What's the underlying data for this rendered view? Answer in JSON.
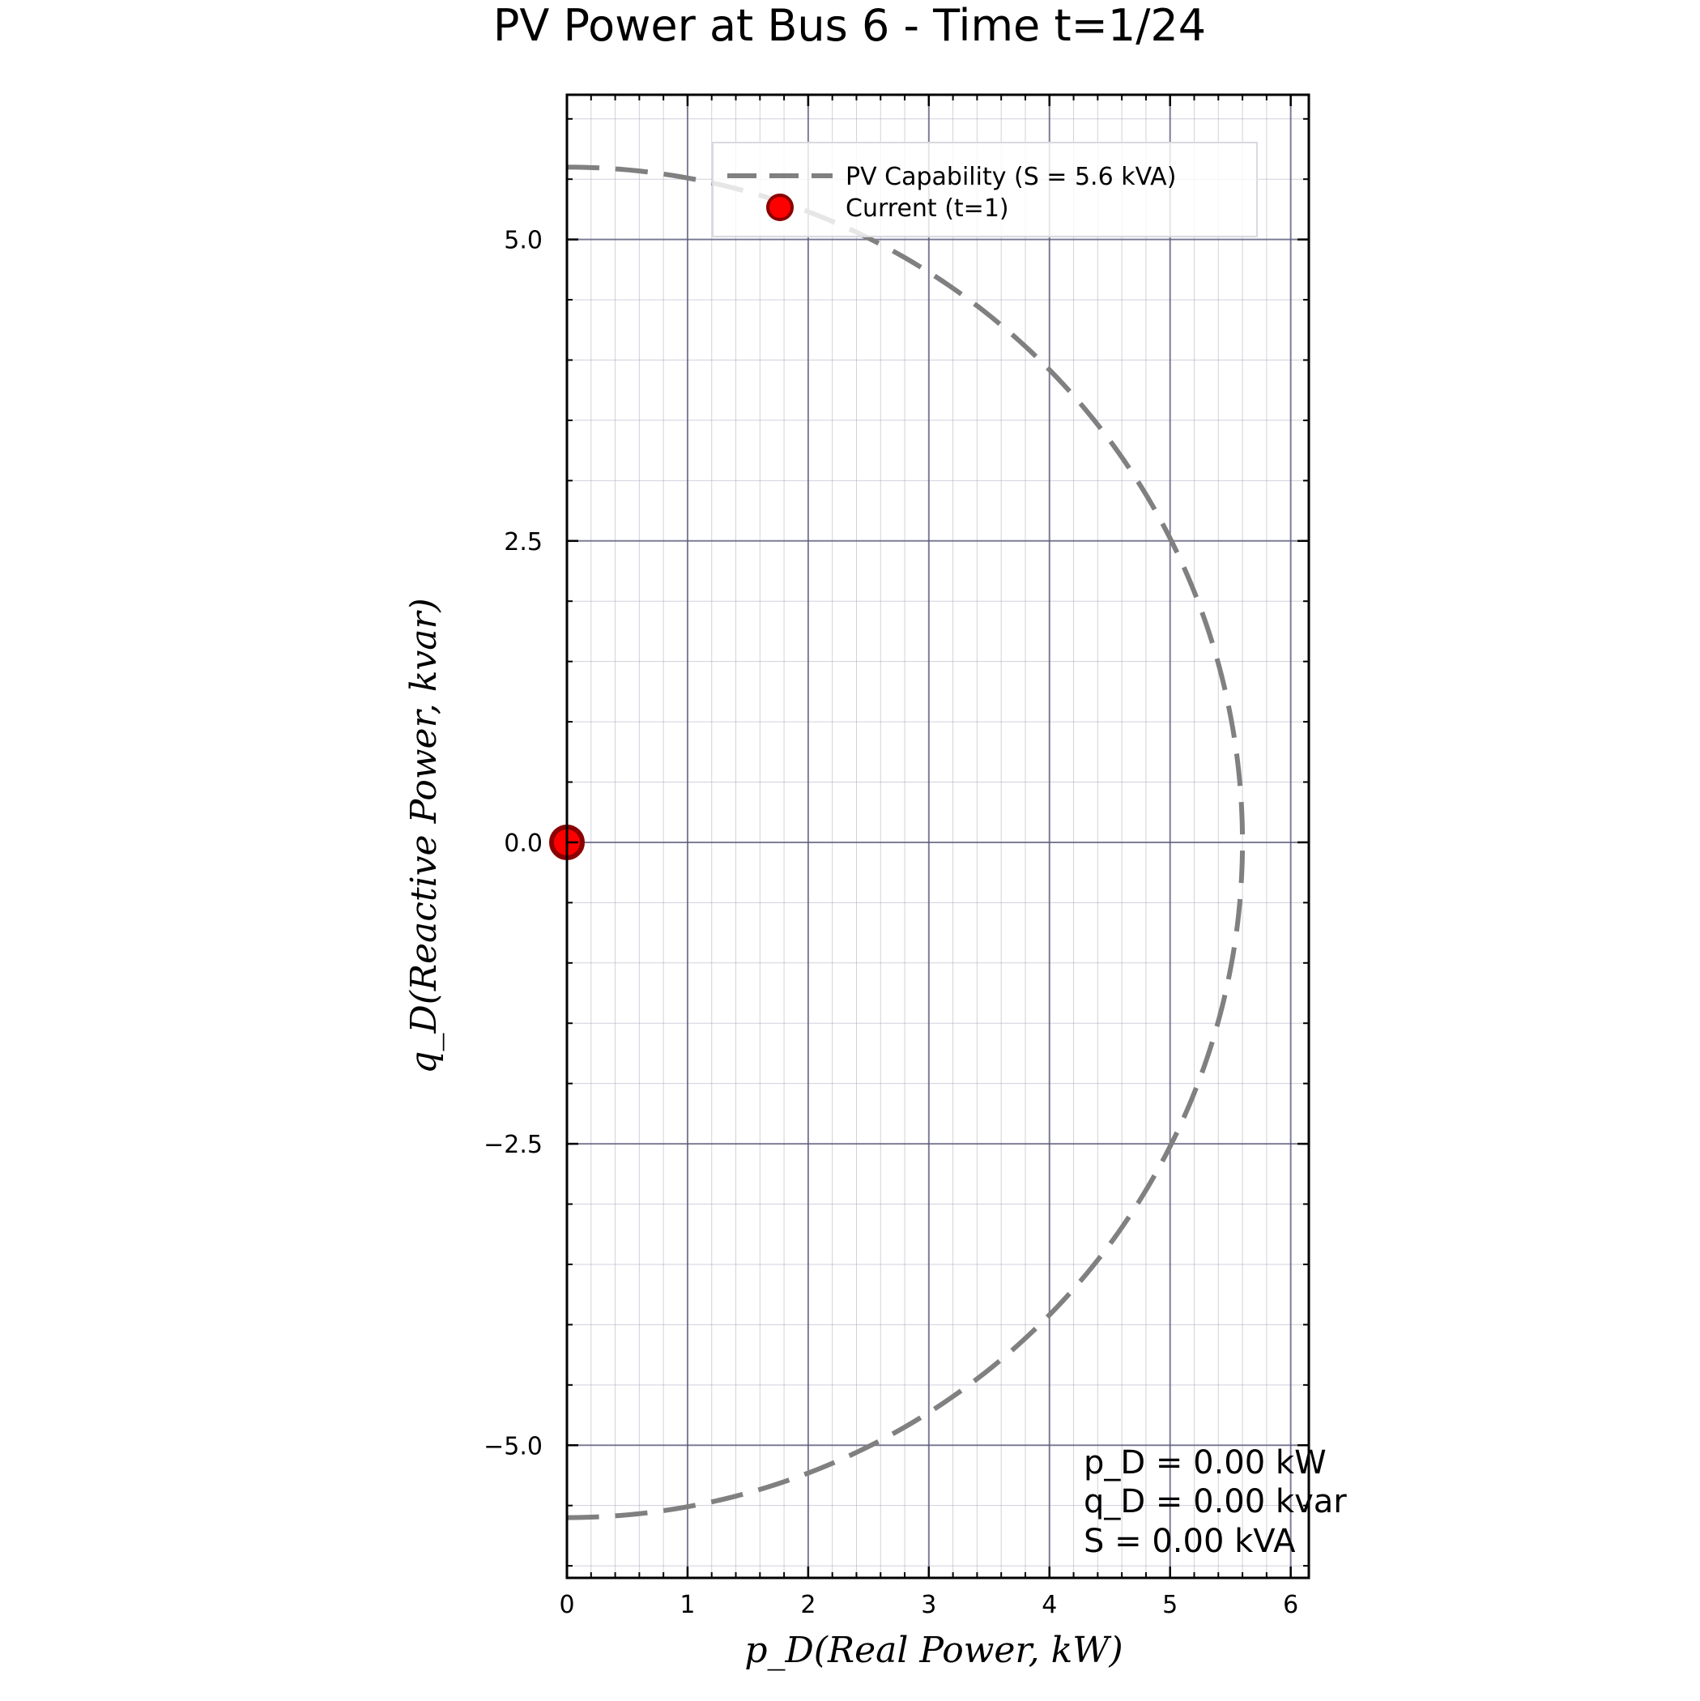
{
  "chart_data": {
    "type": "scatter",
    "title": "PV Power at Bus 6 - Time t=1/24",
    "xlabel": "p_D(Real Power, kW)",
    "ylabel": "q_D(Reactive Power, kvar)",
    "xlim": [
      0,
      6.15
    ],
    "ylim": [
      -6.1,
      6.2
    ],
    "xticks": [
      0,
      1,
      2,
      3,
      4,
      5,
      6
    ],
    "xtick_labels": [
      "0",
      "1",
      "2",
      "3",
      "4",
      "5",
      "6"
    ],
    "yticks": [
      5.0,
      2.5,
      0.0,
      -2.5,
      -5.0
    ],
    "ytick_labels": [
      "5.0",
      "2.5",
      "0.0",
      "−2.5",
      "−5.0"
    ],
    "grid": true,
    "minor_grid": true,
    "legend_position": "top-right",
    "series": [
      {
        "name": "PV Capability (S = 5.6 kVA)",
        "style": "dashed-line",
        "color": "#808080",
        "shape": "right half-circle of radius S",
        "S": 5.6,
        "x": [
          0,
          1.449,
          2.8,
          3.96,
          4.85,
          5.409,
          5.6,
          5.409,
          4.85,
          3.96,
          2.8,
          1.449,
          0
        ],
        "y": [
          5.6,
          5.409,
          4.85,
          3.96,
          2.8,
          1.449,
          0,
          -1.449,
          -2.8,
          -3.96,
          -4.85,
          -5.409,
          -5.6
        ]
      },
      {
        "name": "Current (t=1)",
        "style": "marker",
        "color": "#ff0000",
        "edge_color": "#8b0000",
        "x": [
          0.0
        ],
        "y": [
          0.0
        ]
      }
    ],
    "annotations": [
      "p_D = 0.00 kW",
      "q_D = 0.00 kvar",
      "S = 0.00 kVA"
    ]
  }
}
